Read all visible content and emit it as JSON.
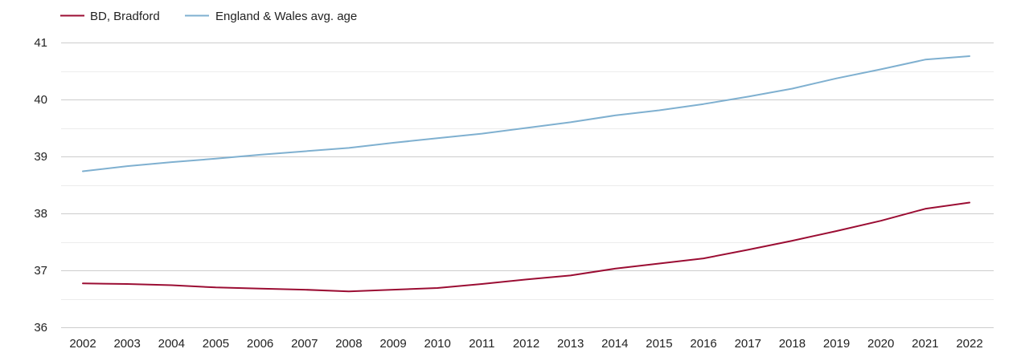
{
  "chart_data": {
    "type": "line",
    "title": "",
    "xlabel": "",
    "ylabel": "",
    "x": [
      "2002",
      "2003",
      "2004",
      "2005",
      "2006",
      "2007",
      "2008",
      "2009",
      "2010",
      "2011",
      "2012",
      "2013",
      "2014",
      "2015",
      "2016",
      "2017",
      "2018",
      "2019",
      "2020",
      "2021",
      "2022"
    ],
    "ylim": [
      36,
      41
    ],
    "yticks": [
      "36",
      "37",
      "38",
      "39",
      "40",
      "41"
    ],
    "grid": true,
    "legend_position": "top-left",
    "series": [
      {
        "name": "BD, Bradford",
        "color": "#9b0d33",
        "values": [
          36.77,
          36.76,
          36.74,
          36.7,
          36.68,
          36.66,
          36.63,
          36.66,
          36.69,
          36.76,
          36.84,
          36.91,
          37.03,
          37.12,
          37.21,
          37.36,
          37.52,
          37.69,
          37.87,
          38.08,
          38.19
        ]
      },
      {
        "name": "England & Wales avg. age",
        "color": "#7fb0d0",
        "values": [
          38.74,
          38.83,
          38.9,
          38.96,
          39.03,
          39.09,
          39.15,
          39.24,
          39.32,
          39.4,
          39.5,
          39.6,
          39.72,
          39.81,
          39.92,
          40.05,
          40.19,
          40.37,
          40.53,
          40.7,
          40.76
        ]
      }
    ]
  }
}
